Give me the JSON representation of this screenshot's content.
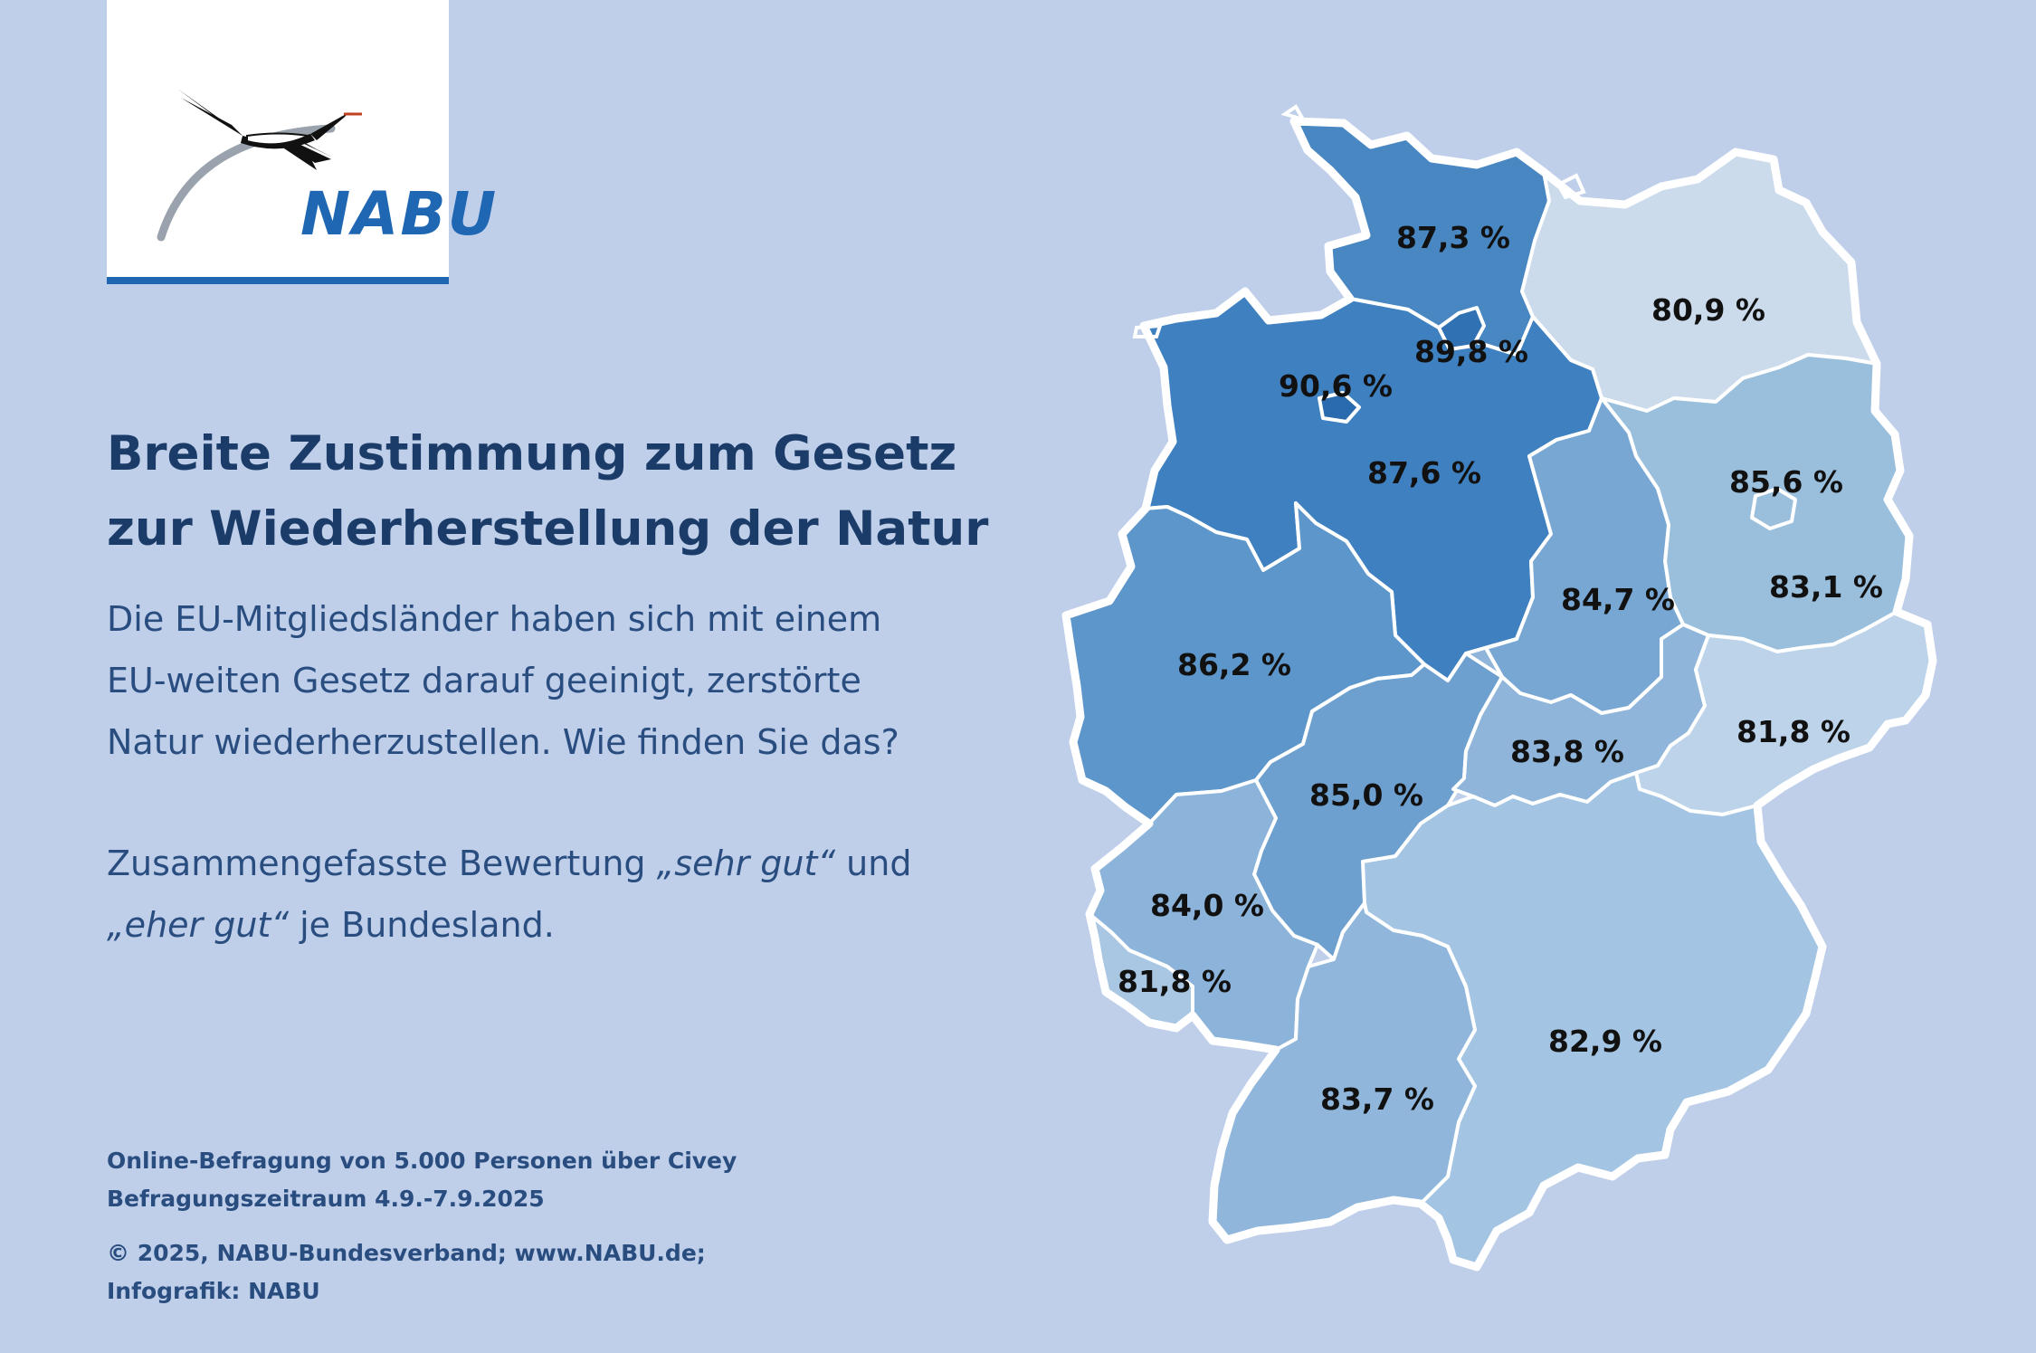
{
  "logo": {
    "text": "NABU"
  },
  "headline": {
    "line1": "Breite Zustimmung zum Gesetz",
    "line2": "zur Wiederherstellung der Natur"
  },
  "question": {
    "line1": "Die EU-Mitgliedsländer haben sich mit einem",
    "line2": "EU-weiten Gesetz darauf geeinigt, zerstörte",
    "line3": "Natur wiederherzustellen. Wie finden Sie das?"
  },
  "note": {
    "prefix": "Zusammengefasste Bewertung ",
    "term1": "„sehr gut“",
    "connector": " und",
    "term2": "„eher gut“",
    "suffix": " je Bundesland."
  },
  "footer": {
    "survey": "Online-Befragung von 5.000 Personen über Civey",
    "period": "Befragungszeitraum 4.9.-7.9.2025",
    "copyright": "© 2025, NABU-Bundesverband; www.NABU.de;",
    "credit": "Infografik: NABU"
  },
  "colors": {
    "background": "#bfcfea",
    "brand_blue": "#1f67b3",
    "headline": "#1b3c68",
    "body_text": "#2a4d80"
  },
  "map_data": {
    "metric": "Anteil „sehr gut“ + „eher gut“",
    "regions": [
      {
        "label": "87,3 %",
        "value": 87.3,
        "fill": "#4887c2"
      },
      {
        "label": "80,9 %",
        "value": 80.9,
        "fill": "#cbdbec"
      },
      {
        "label": "89,8 %",
        "value": 89.8,
        "fill": "#2f71b3"
      },
      {
        "label": "90,6 %",
        "value": 90.6,
        "fill": "#2a6bb0"
      },
      {
        "label": "87,6 %",
        "value": 87.6,
        "fill": "#3f81c0"
      },
      {
        "label": "85,6 %",
        "value": 85.6,
        "fill": "#9abfdd"
      },
      {
        "label": "83,1 %",
        "value": 83.1,
        "fill": "#9abfdd"
      },
      {
        "label": "84,7 %",
        "value": 84.7,
        "fill": "#78a7d3"
      },
      {
        "label": "86,2 %",
        "value": 86.2,
        "fill": "#5d96ca"
      },
      {
        "label": "83,8 %",
        "value": 83.8,
        "fill": "#8fb5da"
      },
      {
        "label": "81,8 %",
        "value": 81.8,
        "fill": "#bcd3e9"
      },
      {
        "label": "85,0 %",
        "value": 85.0,
        "fill": "#6ea0cf"
      },
      {
        "label": "84,0 %",
        "value": 84.0,
        "fill": "#8cb3d9"
      },
      {
        "label": "81,8 %",
        "value": 81.8,
        "fill": "#a9c6e3"
      },
      {
        "label": "82,9 %",
        "value": 82.9,
        "fill": "#a3c4e2"
      },
      {
        "label": "83,7 %",
        "value": 83.7,
        "fill": "#90b7db"
      }
    ]
  }
}
